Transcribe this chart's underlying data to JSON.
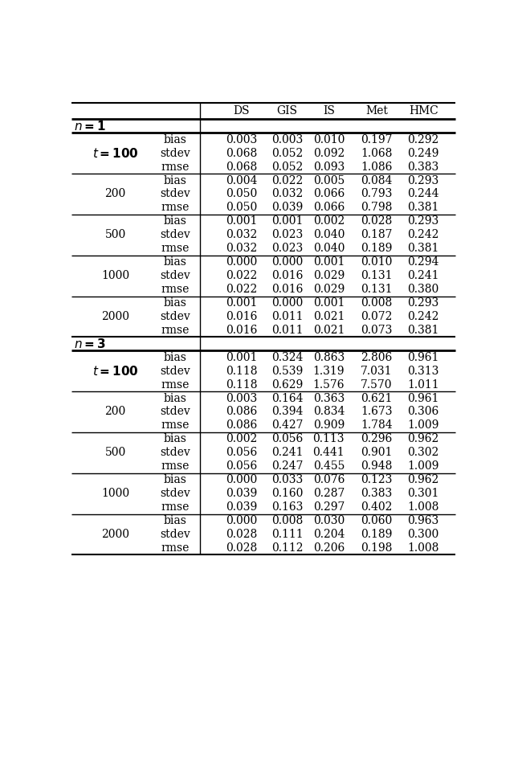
{
  "columns": [
    "DS",
    "GIS",
    "IS",
    "Met",
    "HMC"
  ],
  "background_color": "#ffffff",
  "n1_t100": {
    "bias": [
      "0.003",
      "0.003",
      "0.010",
      "0.197",
      "0.292"
    ],
    "stdev": [
      "0.068",
      "0.052",
      "0.092",
      "1.068",
      "0.249"
    ],
    "rmse": [
      "0.068",
      "0.052",
      "0.093",
      "1.086",
      "0.383"
    ]
  },
  "n1_t200": {
    "bias": [
      "0.004",
      "0.022",
      "0.005",
      "0.084",
      "0.293"
    ],
    "stdev": [
      "0.050",
      "0.032",
      "0.066",
      "0.793",
      "0.244"
    ],
    "rmse": [
      "0.050",
      "0.039",
      "0.066",
      "0.798",
      "0.381"
    ]
  },
  "n1_t500": {
    "bias": [
      "0.001",
      "0.001",
      "0.002",
      "0.028",
      "0.293"
    ],
    "stdev": [
      "0.032",
      "0.023",
      "0.040",
      "0.187",
      "0.242"
    ],
    "rmse": [
      "0.032",
      "0.023",
      "0.040",
      "0.189",
      "0.381"
    ]
  },
  "n1_t1000": {
    "bias": [
      "0.000",
      "0.000",
      "0.001",
      "0.010",
      "0.294"
    ],
    "stdev": [
      "0.022",
      "0.016",
      "0.029",
      "0.131",
      "0.241"
    ],
    "rmse": [
      "0.022",
      "0.016",
      "0.029",
      "0.131",
      "0.380"
    ]
  },
  "n1_t2000": {
    "bias": [
      "0.001",
      "0.000",
      "0.001",
      "0.008",
      "0.293"
    ],
    "stdev": [
      "0.016",
      "0.011",
      "0.021",
      "0.072",
      "0.242"
    ],
    "rmse": [
      "0.016",
      "0.011",
      "0.021",
      "0.073",
      "0.381"
    ]
  },
  "n3_t100": {
    "bias": [
      "0.001",
      "0.324",
      "0.863",
      "2.806",
      "0.961"
    ],
    "stdev": [
      "0.118",
      "0.539",
      "1.319",
      "7.031",
      "0.313"
    ],
    "rmse": [
      "0.118",
      "0.629",
      "1.576",
      "7.570",
      "1.011"
    ]
  },
  "n3_t200": {
    "bias": [
      "0.003",
      "0.164",
      "0.363",
      "0.621",
      "0.961"
    ],
    "stdev": [
      "0.086",
      "0.394",
      "0.834",
      "1.673",
      "0.306"
    ],
    "rmse": [
      "0.086",
      "0.427",
      "0.909",
      "1.784",
      "1.009"
    ]
  },
  "n3_t500": {
    "bias": [
      "0.002",
      "0.056",
      "0.113",
      "0.296",
      "0.962"
    ],
    "stdev": [
      "0.056",
      "0.241",
      "0.441",
      "0.901",
      "0.302"
    ],
    "rmse": [
      "0.056",
      "0.247",
      "0.455",
      "0.948",
      "1.009"
    ]
  },
  "n3_t1000": {
    "bias": [
      "0.000",
      "0.033",
      "0.076",
      "0.123",
      "0.962"
    ],
    "stdev": [
      "0.039",
      "0.160",
      "0.287",
      "0.383",
      "0.301"
    ],
    "rmse": [
      "0.039",
      "0.163",
      "0.297",
      "0.402",
      "1.008"
    ]
  },
  "n3_t2000": {
    "bias": [
      "0.000",
      "0.008",
      "0.030",
      "0.060",
      "0.963"
    ],
    "stdev": [
      "0.028",
      "0.111",
      "0.204",
      "0.189",
      "0.300"
    ],
    "rmse": [
      "0.028",
      "0.112",
      "0.206",
      "0.198",
      "1.008"
    ]
  }
}
